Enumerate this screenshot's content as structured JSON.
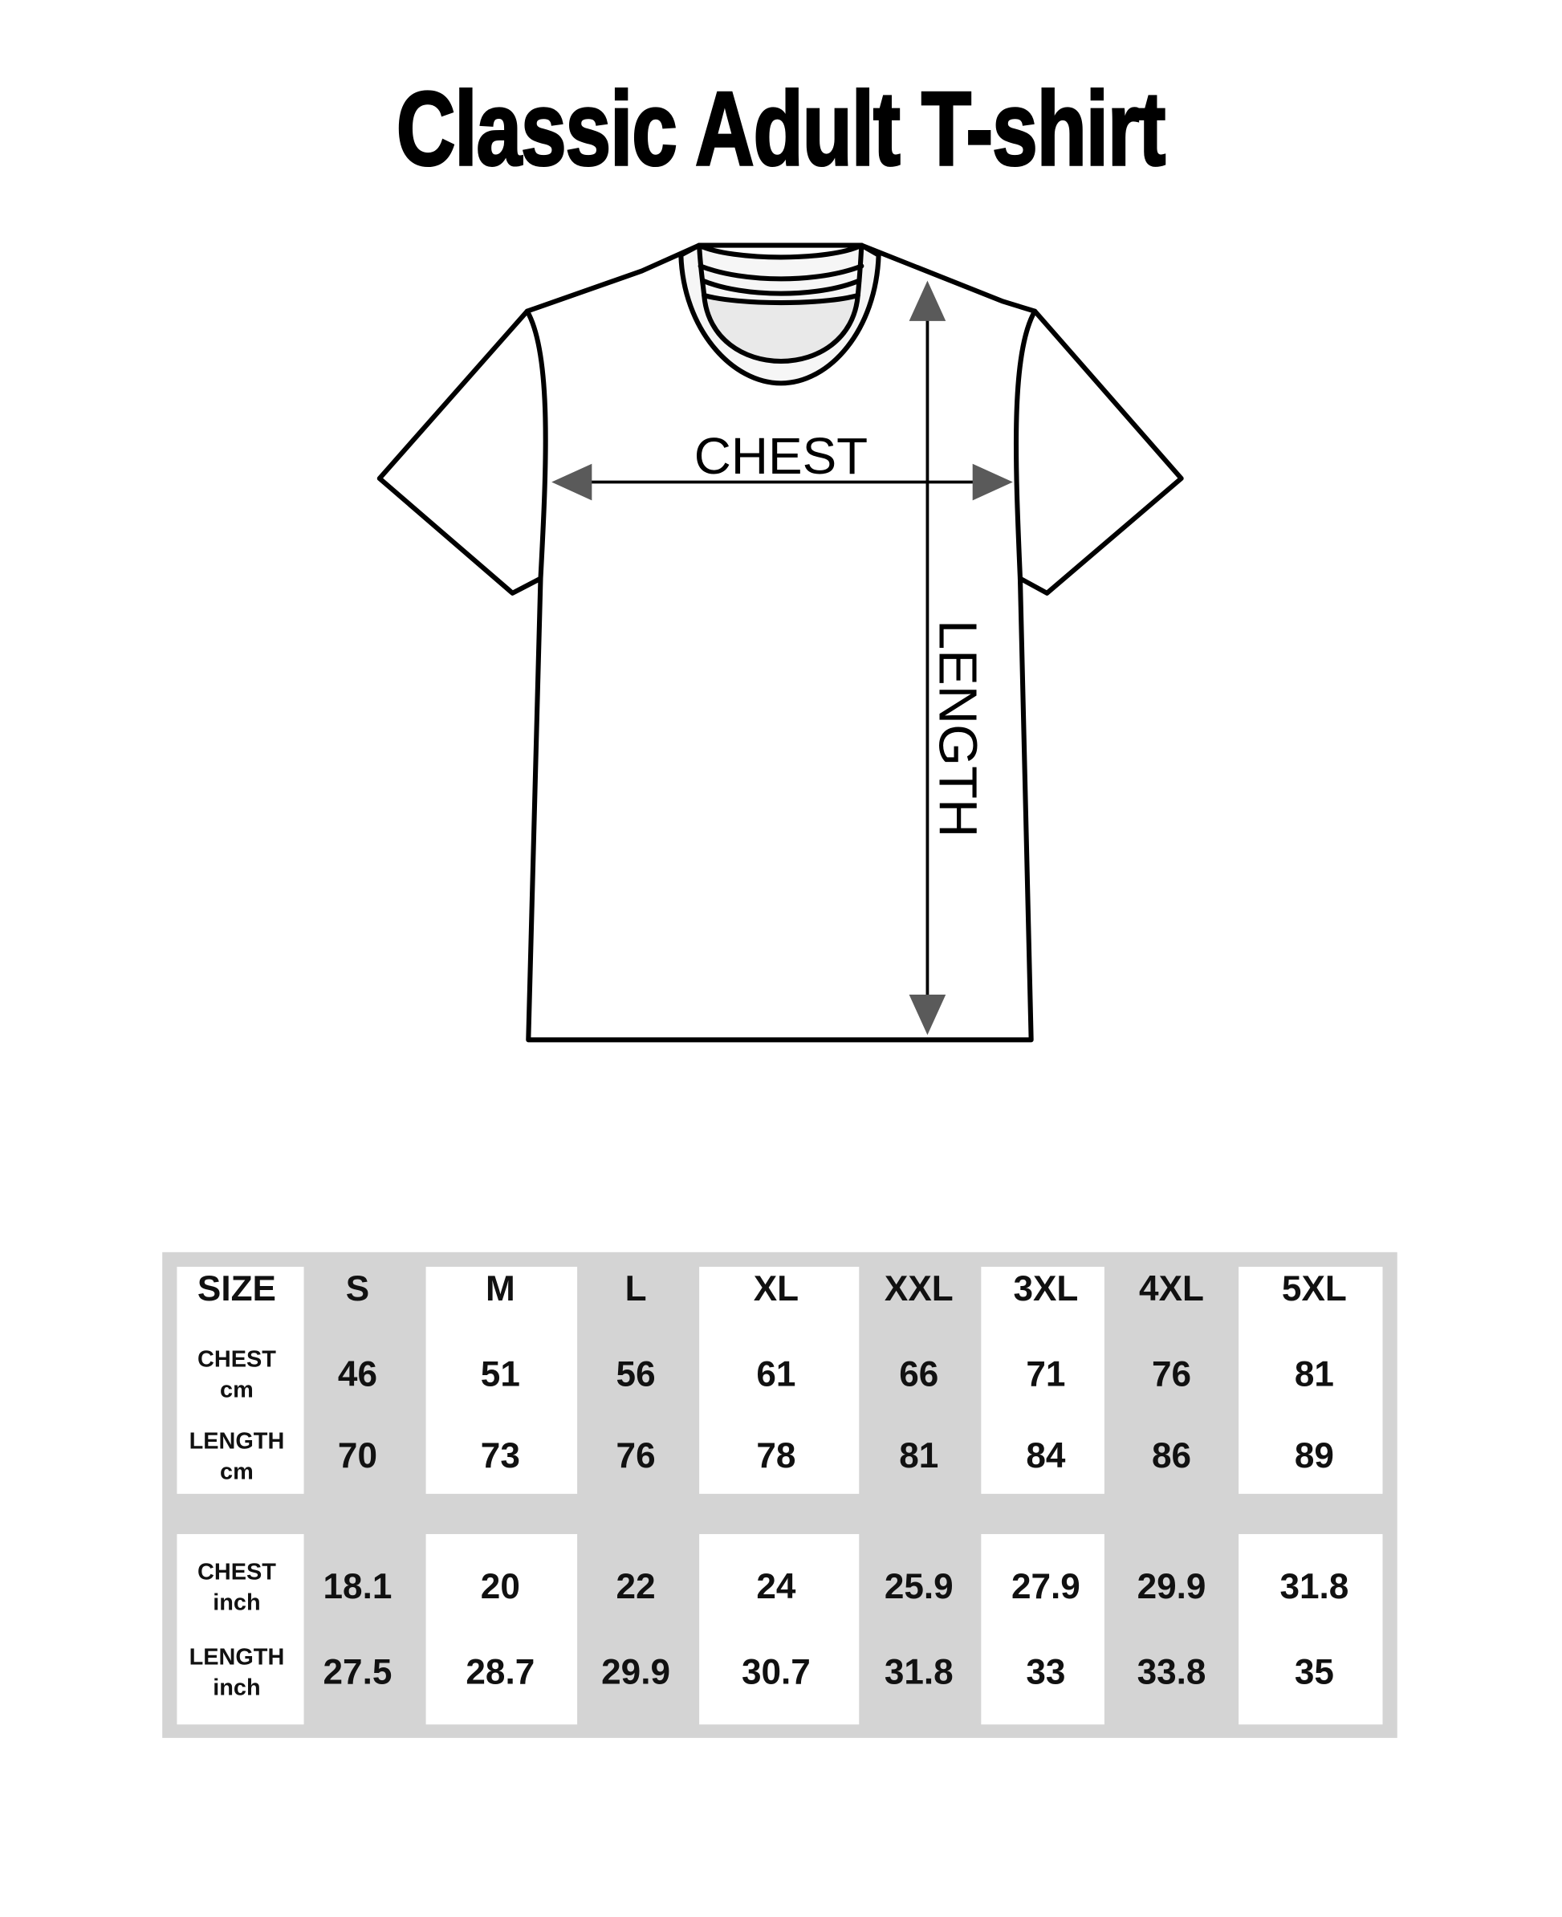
{
  "title": "Classic Adult T-shirt",
  "diagram": {
    "chest_label": "CHEST",
    "length_label": "LENGTH",
    "arrow_color": "#5a5a5a",
    "collar_inner_color": "#e9e9e9"
  },
  "size_chart": {
    "header_label": "SIZE",
    "sizes": [
      "S",
      "M",
      "L",
      "XL",
      "XXL",
      "3XL",
      "4XL",
      "5XL"
    ],
    "rows": [
      {
        "label": "CHEST",
        "unit": "cm",
        "values": [
          "46",
          "51",
          "56",
          "61",
          "66",
          "71",
          "76",
          "81"
        ]
      },
      {
        "label": "LENGTH",
        "unit": "cm",
        "values": [
          "70",
          "73",
          "76",
          "78",
          "81",
          "84",
          "86",
          "89"
        ]
      },
      {
        "label": "CHEST",
        "unit": "inch",
        "values": [
          "18.1",
          "20",
          "22",
          "24",
          "25.9",
          "27.9",
          "29.9",
          "31.8"
        ]
      },
      {
        "label": "LENGTH",
        "unit": "inch",
        "values": [
          "27.5",
          "28.7",
          "29.9",
          "30.7",
          "31.8",
          "33",
          "33.8",
          "35"
        ]
      }
    ],
    "background_color": "#d4d4d4"
  }
}
